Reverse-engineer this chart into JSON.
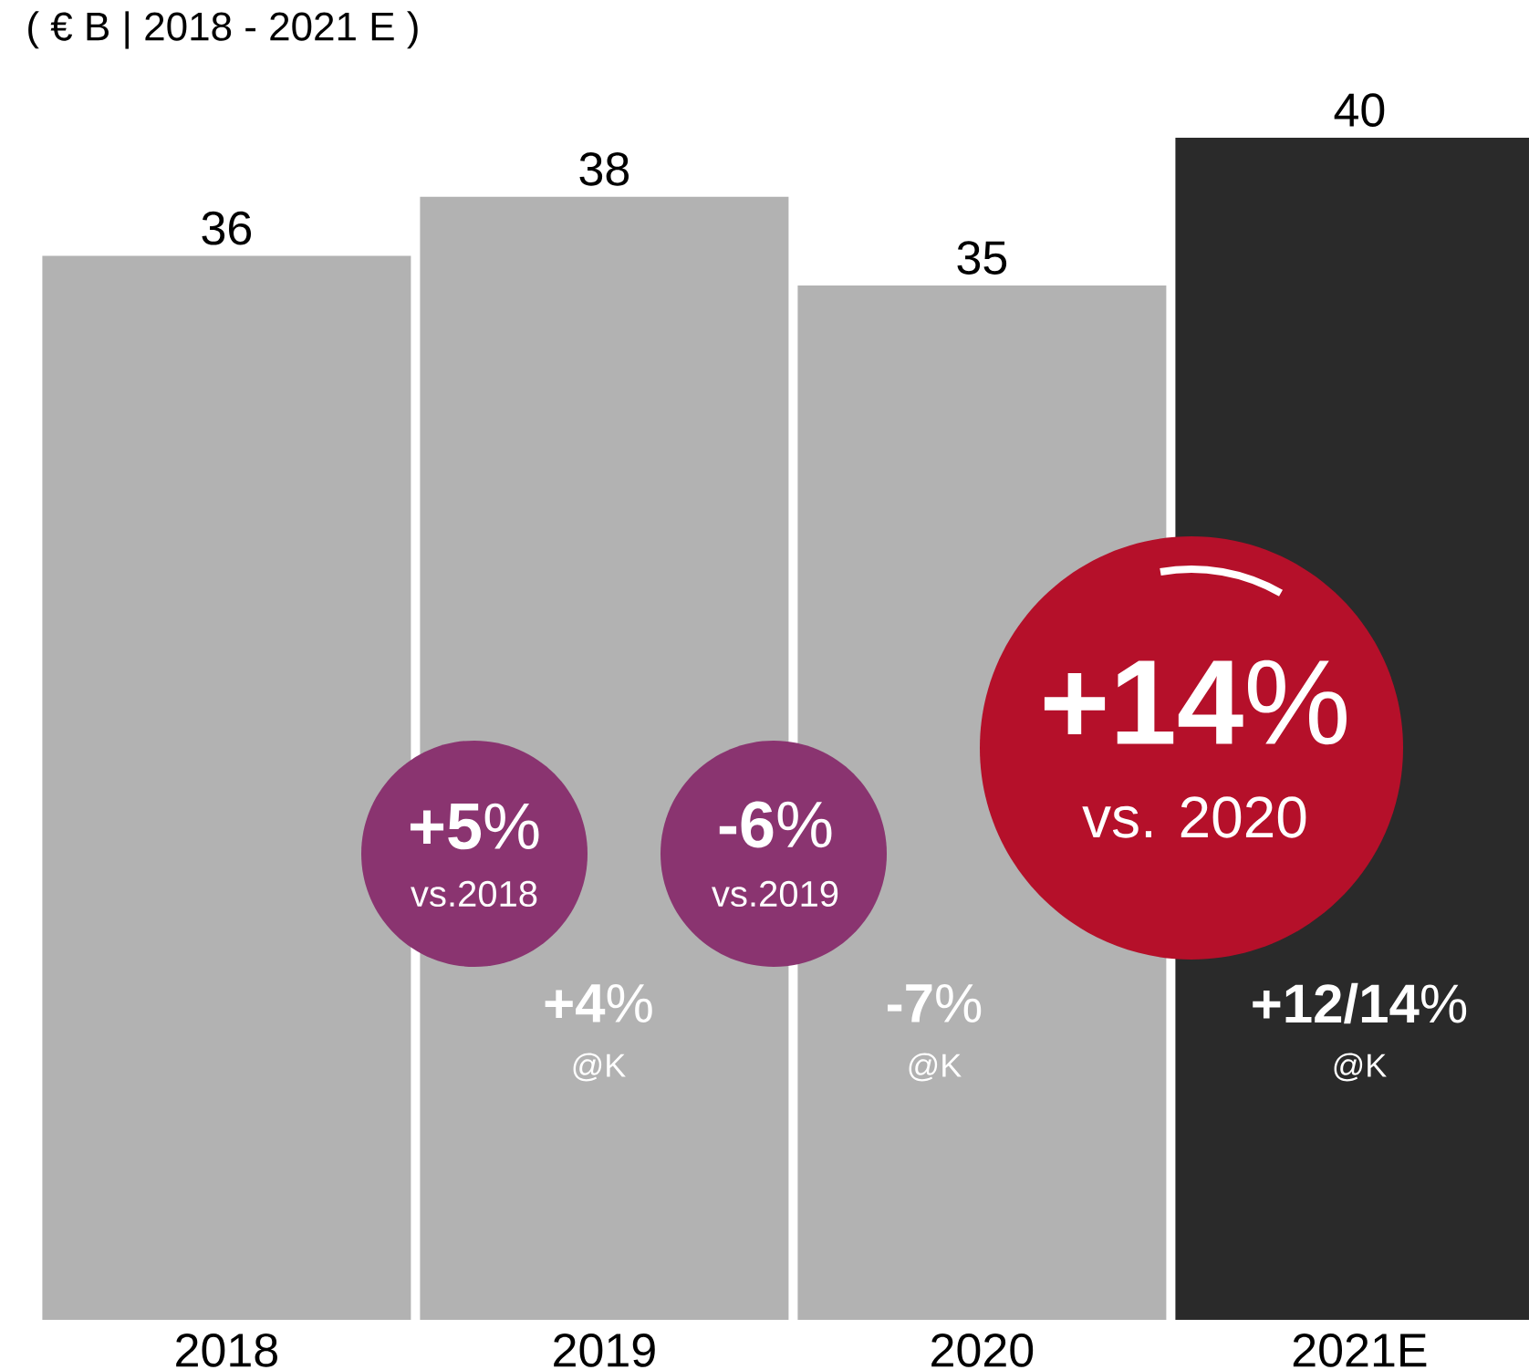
{
  "chart_data": {
    "type": "bar",
    "title": "( € B  |  2018 - 2021 E )",
    "categories": [
      "2018",
      "2019",
      "2020",
      "2021E"
    ],
    "values": [
      36,
      38,
      35,
      40
    ],
    "colors": [
      "#b2b2b2",
      "#b2b2b2",
      "#b2b2b2",
      "#2a2a2a"
    ],
    "ylim": [
      0,
      40
    ],
    "data_labels": true,
    "tick_labels": "x",
    "grid": false,
    "annotations": [
      "**+5**%",
      "vs.2018",
      "**-6**%",
      "vs.2019",
      "**+14**%",
      "vs. 2020",
      "**+4**%",
      "@K",
      "**-7**%",
      "@K",
      "**+12/14**%",
      "@K"
    ]
  }
}
